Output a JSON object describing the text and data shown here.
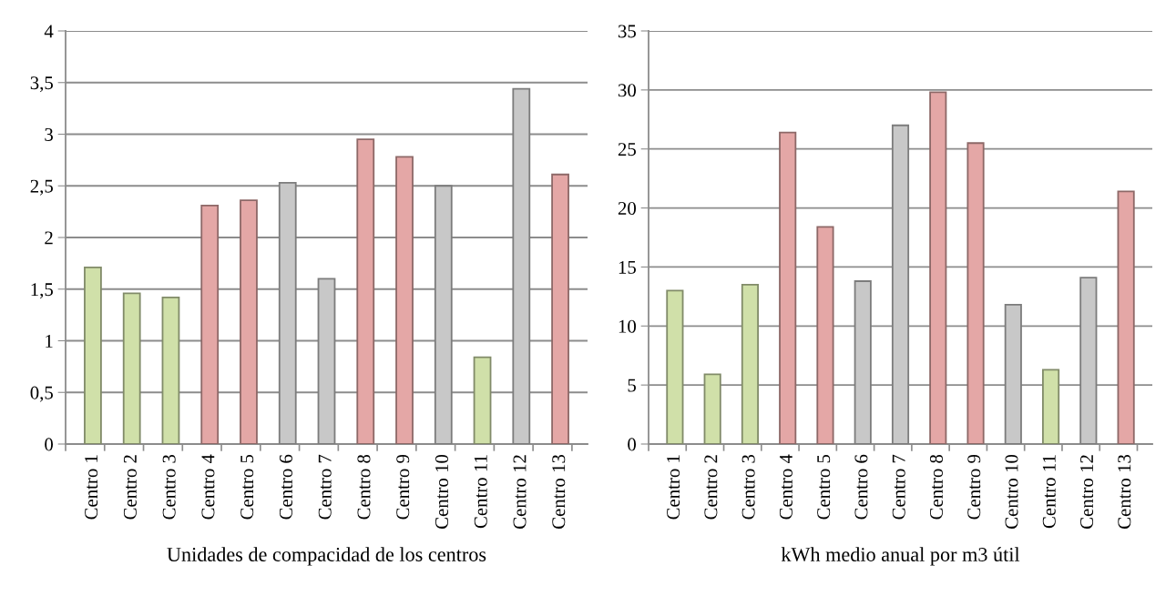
{
  "chart_data": [
    {
      "type": "bar",
      "xlabel": "Unidades de compacidad de los centros",
      "categories": [
        "Centro 1",
        "Centro 2",
        "Centro 3",
        "Centro 4",
        "Centro 5",
        "Centro 6",
        "Centro 7",
        "Centro 8",
        "Centro 9",
        "Centro 10",
        "Centro 11",
        "Centro 12",
        "Centro 13"
      ],
      "values": [
        1.71,
        1.46,
        1.42,
        2.31,
        2.36,
        2.53,
        1.6,
        2.95,
        2.78,
        2.5,
        0.84,
        3.44,
        2.61
      ],
      "colors": [
        "#d0e0a9",
        "#d0e0a9",
        "#d0e0a9",
        "#e4a7a6",
        "#e4a7a6",
        "#c8c8c8",
        "#c8c8c8",
        "#e4a7a6",
        "#e4a7a6",
        "#c8c8c8",
        "#d0e0a9",
        "#c8c8c8",
        "#e4a7a6"
      ],
      "ylim": [
        0,
        4
      ],
      "yticks": [
        0,
        {
          "value": 0.5,
          "label": "0,5"
        },
        1,
        {
          "value": 1.5,
          "label": "1,5"
        },
        2,
        {
          "value": 2.5,
          "label": "2,5"
        },
        3,
        {
          "value": 3.5,
          "label": "3,5"
        },
        4
      ],
      "grid": "y"
    },
    {
      "type": "bar",
      "xlabel": "kWh medio anual por m3 útil",
      "categories": [
        "Centro 1",
        "Centro 2",
        "Centro 3",
        "Centro 4",
        "Centro 5",
        "Centro 6",
        "Centro 7",
        "Centro 8",
        "Centro 9",
        "Centro 10",
        "Centro 11",
        "Centro 12",
        "Centro 13"
      ],
      "values": [
        13.0,
        5.9,
        13.5,
        26.4,
        18.4,
        13.8,
        27.0,
        29.8,
        25.5,
        11.8,
        6.3,
        14.1,
        21.4
      ],
      "colors": [
        "#d0e0a9",
        "#d0e0a9",
        "#d0e0a9",
        "#e4a7a6",
        "#e4a7a6",
        "#c8c8c8",
        "#c8c8c8",
        "#e4a7a6",
        "#e4a7a6",
        "#c8c8c8",
        "#d0e0a9",
        "#c8c8c8",
        "#e4a7a6"
      ],
      "ylim": [
        0,
        35
      ],
      "yticks": [
        0,
        5,
        10,
        15,
        20,
        25,
        30,
        35
      ],
      "grid": "y"
    }
  ]
}
